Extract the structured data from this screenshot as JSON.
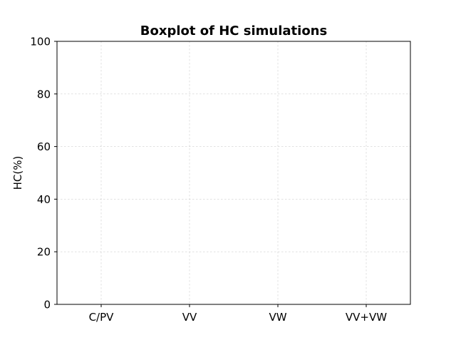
{
  "chart_data": {
    "type": "boxplot",
    "title": "Boxplot of HC simulations",
    "xlabel": "",
    "ylabel": "HC(%)",
    "categories": [
      "C/PV",
      "VV",
      "VW",
      "VV+VW"
    ],
    "series": [],
    "ylim": [
      0,
      100
    ],
    "yticks": [
      0,
      20,
      40,
      60,
      80,
      100
    ],
    "grid": true
  }
}
